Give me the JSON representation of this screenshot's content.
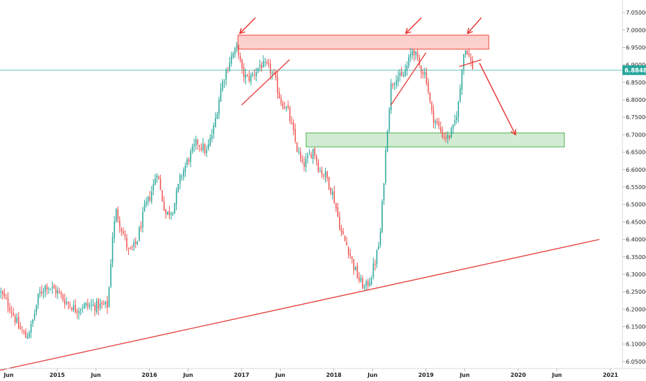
{
  "chart_data": {
    "type": "candlestick",
    "y_axis": {
      "position": "right",
      "min": 6.03,
      "max": 7.07,
      "ticks": [
        "7.05000",
        "7.00000",
        "6.95000",
        "6.90000",
        "6.85000",
        "6.80000",
        "6.75000",
        "6.70000",
        "6.65000",
        "6.60000",
        "6.55000",
        "6.50000",
        "6.45000",
        "6.40000",
        "6.35000",
        "6.30000",
        "6.25000",
        "6.20000",
        "6.15000",
        "6.10000",
        "6.05000"
      ]
    },
    "x_axis": {
      "ticks": [
        {
          "label": "Jun",
          "t": 2014.42
        },
        {
          "label": "2015",
          "t": 2015.0
        },
        {
          "label": "Jun",
          "t": 2015.42
        },
        {
          "label": "2016",
          "t": 2016.0
        },
        {
          "label": "Jun",
          "t": 2016.42
        },
        {
          "label": "2017",
          "t": 2017.0
        },
        {
          "label": "Jun",
          "t": 2017.42
        },
        {
          "label": "2018",
          "t": 2018.0
        },
        {
          "label": "Jun",
          "t": 2018.42
        },
        {
          "label": "2019",
          "t": 2019.0
        },
        {
          "label": "Jun",
          "t": 2019.42
        },
        {
          "label": "2020",
          "t": 2020.0
        },
        {
          "label": "Jun",
          "t": 2020.42
        },
        {
          "label": "2021",
          "t": 2021.0
        }
      ]
    },
    "t_range": [
      2014.38,
      2021.13
    ],
    "last_price": {
      "label": "6.88480",
      "value": 6.8848,
      "color": "#26a69a"
    },
    "up_color": "#26a69a",
    "down_color": "#ef5350",
    "price_path": [
      [
        2014.38,
        6.25
      ],
      [
        2014.5,
        6.2
      ],
      [
        2014.58,
        6.15
      ],
      [
        2014.66,
        6.12
      ],
      [
        2014.72,
        6.15
      ],
      [
        2014.8,
        6.24
      ],
      [
        2014.88,
        6.27
      ],
      [
        2015.0,
        6.25
      ],
      [
        2015.1,
        6.22
      ],
      [
        2015.2,
        6.2
      ],
      [
        2015.3,
        6.21
      ],
      [
        2015.4,
        6.21
      ],
      [
        2015.55,
        6.21
      ],
      [
        2015.6,
        6.41
      ],
      [
        2015.64,
        6.48
      ],
      [
        2015.7,
        6.43
      ],
      [
        2015.78,
        6.36
      ],
      [
        2015.86,
        6.39
      ],
      [
        2015.95,
        6.49
      ],
      [
        2016.0,
        6.52
      ],
      [
        2016.04,
        6.55
      ],
      [
        2016.08,
        6.6
      ],
      [
        2016.12,
        6.54
      ],
      [
        2016.18,
        6.47
      ],
      [
        2016.26,
        6.49
      ],
      [
        2016.34,
        6.58
      ],
      [
        2016.44,
        6.64
      ],
      [
        2016.52,
        6.68
      ],
      [
        2016.62,
        6.65
      ],
      [
        2016.7,
        6.72
      ],
      [
        2016.78,
        6.84
      ],
      [
        2016.88,
        6.92
      ],
      [
        2016.96,
        6.95
      ],
      [
        2017.0,
        6.88
      ],
      [
        2017.06,
        6.86
      ],
      [
        2017.12,
        6.87
      ],
      [
        2017.2,
        6.9
      ],
      [
        2017.3,
        6.89
      ],
      [
        2017.36,
        6.86
      ],
      [
        2017.42,
        6.8
      ],
      [
        2017.5,
        6.77
      ],
      [
        2017.6,
        6.66
      ],
      [
        2017.66,
        6.61
      ],
      [
        2017.72,
        6.63
      ],
      [
        2017.78,
        6.66
      ],
      [
        2017.84,
        6.6
      ],
      [
        2017.92,
        6.58
      ],
      [
        2018.0,
        6.52
      ],
      [
        2018.08,
        6.42
      ],
      [
        2018.16,
        6.37
      ],
      [
        2018.22,
        6.32
      ],
      [
        2018.28,
        6.28
      ],
      [
        2018.34,
        6.26
      ],
      [
        2018.4,
        6.29
      ],
      [
        2018.46,
        6.35
      ],
      [
        2018.5,
        6.4
      ],
      [
        2018.54,
        6.56
      ],
      [
        2018.58,
        6.72
      ],
      [
        2018.62,
        6.84
      ],
      [
        2018.68,
        6.87
      ],
      [
        2018.74,
        6.86
      ],
      [
        2018.8,
        6.9
      ],
      [
        2018.86,
        6.95
      ],
      [
        2018.92,
        6.9
      ],
      [
        2019.0,
        6.87
      ],
      [
        2019.06,
        6.76
      ],
      [
        2019.12,
        6.73
      ],
      [
        2019.18,
        6.7
      ],
      [
        2019.24,
        6.69
      ],
      [
        2019.3,
        6.72
      ],
      [
        2019.36,
        6.8
      ],
      [
        2019.4,
        6.93
      ],
      [
        2019.44,
        6.95
      ],
      [
        2019.48,
        6.91
      ],
      [
        2019.52,
        6.8848
      ]
    ]
  },
  "annotations": {
    "resistance_zone": {
      "color": "#f44336",
      "t0": 2016.96,
      "t1": 2019.68,
      "y_top": 6.985,
      "y_bot": 6.945
    },
    "support_zone": {
      "color": "#4caf50",
      "t0": 2017.7,
      "t1": 2020.5,
      "y_top": 6.705,
      "y_bot": 6.665
    },
    "trend_line": {
      "color": "#e53935",
      "points": [
        [
          2014.38,
          6.025
        ],
        [
          2020.88,
          6.4
        ]
      ]
    },
    "small_lines": [
      {
        "points": [
          [
            2017.0,
            6.785
          ],
          [
            2017.52,
            6.915
          ]
        ]
      },
      {
        "points": [
          [
            2018.62,
            6.785
          ],
          [
            2019.0,
            6.935
          ]
        ]
      },
      {
        "points": [
          [
            2019.36,
            6.895
          ],
          [
            2019.6,
            6.915
          ]
        ]
      }
    ],
    "arrows": [
      {
        "from": [
          2017.15,
          7.035
        ],
        "to": [
          2016.98,
          6.99
        ]
      },
      {
        "from": [
          2018.95,
          7.035
        ],
        "to": [
          2018.78,
          6.99
        ]
      },
      {
        "from": [
          2019.6,
          7.035
        ],
        "to": [
          2019.45,
          6.99
        ]
      },
      {
        "from": [
          2019.58,
          6.905
        ],
        "to": [
          2019.97,
          6.7
        ]
      }
    ]
  }
}
